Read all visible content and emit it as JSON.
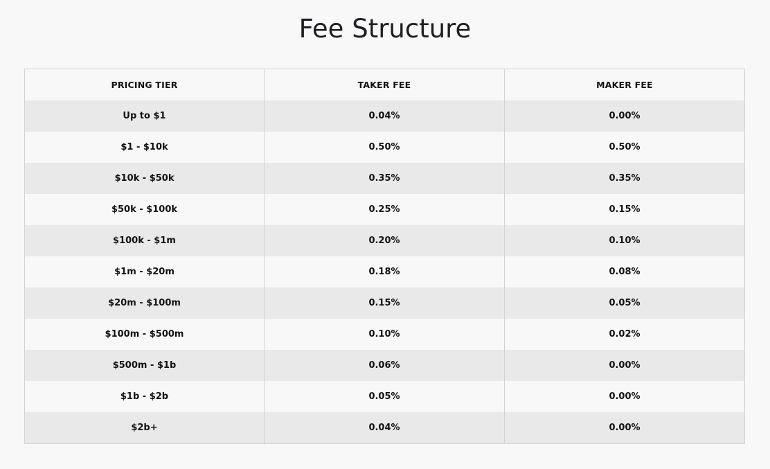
{
  "page": {
    "title": "Fee Structure"
  },
  "table": {
    "headers": {
      "tier": "PRICING TIER",
      "taker": "TAKER FEE",
      "maker": "MAKER FEE"
    },
    "rows": [
      {
        "tier": "Up to $1",
        "taker": "0.04%",
        "maker": "0.00%"
      },
      {
        "tier": "$1 - $10k",
        "taker": "0.50%",
        "maker": "0.50%"
      },
      {
        "tier": "$10k - $50k",
        "taker": "0.35%",
        "maker": "0.35%"
      },
      {
        "tier": "$50k - $100k",
        "taker": "0.25%",
        "maker": "0.15%"
      },
      {
        "tier": "$100k - $1m",
        "taker": "0.20%",
        "maker": "0.10%"
      },
      {
        "tier": "$1m - $20m",
        "taker": "0.18%",
        "maker": "0.08%"
      },
      {
        "tier": "$20m - $100m",
        "taker": "0.15%",
        "maker": "0.05%"
      },
      {
        "tier": "$100m - $500m",
        "taker": "0.10%",
        "maker": "0.02%"
      },
      {
        "tier": "$500m - $1b",
        "taker": "0.06%",
        "maker": "0.00%"
      },
      {
        "tier": "$1b - $2b",
        "taker": "0.05%",
        "maker": "0.00%"
      },
      {
        "tier": "$2b+",
        "taker": "0.04%",
        "maker": "0.00%"
      }
    ]
  },
  "colors": {
    "background": "#f8f8f8",
    "row_alt": "#e9e9e9",
    "border": "#d2d2d2",
    "title": "#1c1f24"
  }
}
